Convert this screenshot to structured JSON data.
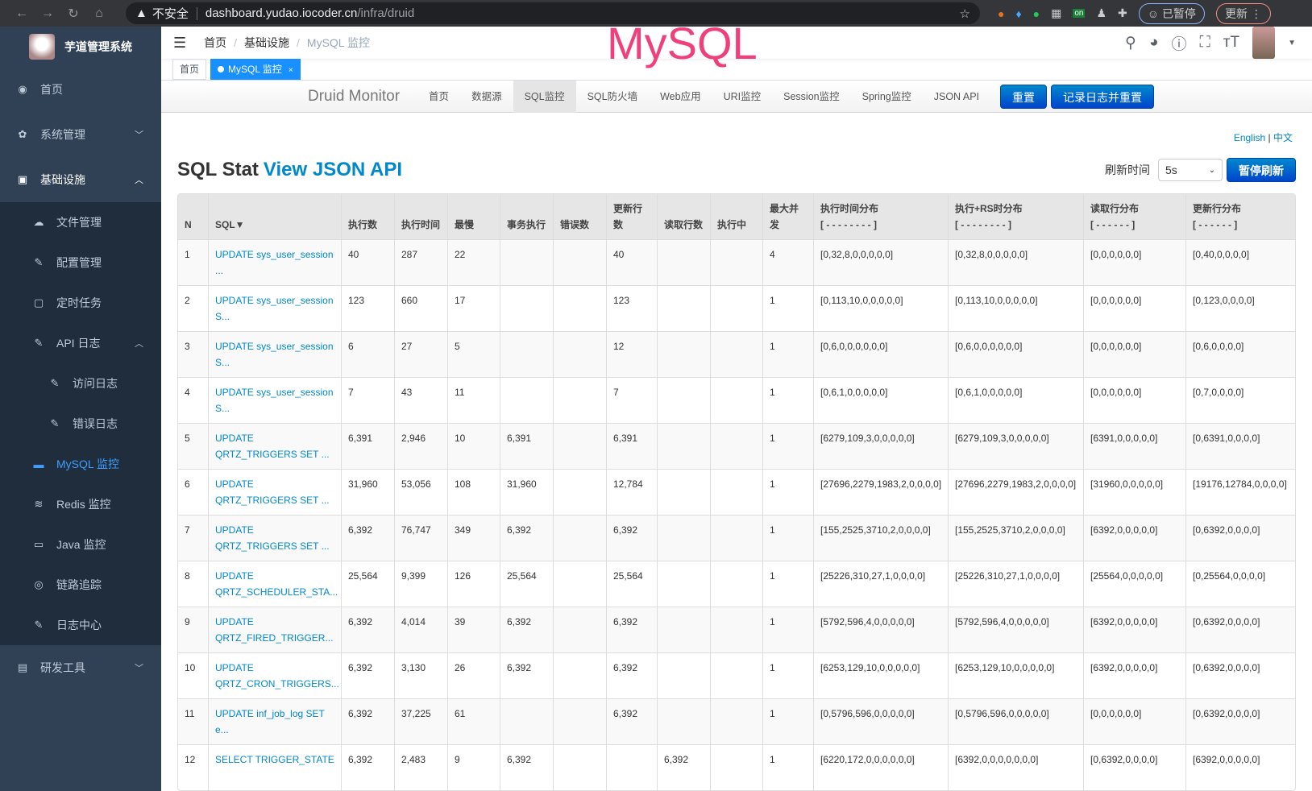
{
  "browser": {
    "insecure": "不安全",
    "url_host": "dashboard.yudao.iocoder.cn",
    "url_path": "/infra/druid",
    "paused": "已暂停",
    "update": "更新",
    "ext_on": "on"
  },
  "sidebar": {
    "title": "芋道管理系统",
    "items": [
      {
        "label": "首页",
        "icon": "dashboard-icon"
      },
      {
        "label": "系统管理",
        "icon": "gear-icon"
      },
      {
        "label": "基础设施",
        "icon": "monitor-icon"
      },
      {
        "label": "文件管理",
        "icon": "upload-icon"
      },
      {
        "label": "配置管理",
        "icon": "edit-icon"
      },
      {
        "label": "定时任务",
        "icon": "job-icon"
      },
      {
        "label": "API 日志",
        "icon": "log-icon"
      },
      {
        "label": "访问日志",
        "icon": "log-icon"
      },
      {
        "label": "错误日志",
        "icon": "log-icon"
      },
      {
        "label": "MySQL 监控",
        "icon": "mysql-icon"
      },
      {
        "label": "Redis 监控",
        "icon": "redis-icon"
      },
      {
        "label": "Java 监控",
        "icon": "server-icon"
      },
      {
        "label": "链路追踪",
        "icon": "eye-icon"
      },
      {
        "label": "日志中心",
        "icon": "log-icon"
      },
      {
        "label": "研发工具",
        "icon": "toolbox-icon"
      }
    ]
  },
  "header": {
    "breadcrumb": [
      "首页",
      "基础设施",
      "MySQL 监控"
    ],
    "overlay_title": "MySQL"
  },
  "tags": {
    "home": "首页",
    "active": "MySQL 监控",
    "close": "×"
  },
  "druid": {
    "brand": "Druid Monitor",
    "nav": [
      "首页",
      "数据源",
      "SQL监控",
      "SQL防火墙",
      "Web应用",
      "URI监控",
      "Session监控",
      "Spring监控",
      "JSON API"
    ],
    "active_nav": "SQL监控",
    "reset": "重置",
    "log_reset": "记录日志并重置",
    "lang_en": "English",
    "lang_sep": "|",
    "lang_zh": "中文",
    "title": "SQL Stat",
    "json_link": "View JSON API",
    "refresh_label": "刷新时间",
    "refresh_value": "5s",
    "pause": "暂停刷新"
  },
  "table": {
    "headers": [
      "N",
      "SQL▼",
      "执行数",
      "执行时间",
      "最慢",
      "事务执行",
      "错误数",
      "更新行数",
      "读取行数",
      "执行中",
      "最大并发",
      "执行时间分布\n[ - - - - - - - - ]",
      "执行+RS时分布\n[ - - - - - - - - ]",
      "读取行分布\n[ - - - - - - ]",
      "更新行分布\n[ - - - - - - ]"
    ],
    "rows": [
      [
        "1",
        "UPDATE sys_user_session ...",
        "40",
        "287",
        "22",
        "",
        "",
        "40",
        "",
        "",
        "4",
        "[0,32,8,0,0,0,0,0]",
        "[0,32,8,0,0,0,0,0]",
        "[0,0,0,0,0,0]",
        "[0,40,0,0,0,0]"
      ],
      [
        "2",
        "UPDATE sys_user_session S...",
        "123",
        "660",
        "17",
        "",
        "",
        "123",
        "",
        "",
        "1",
        "[0,113,10,0,0,0,0,0]",
        "[0,113,10,0,0,0,0,0]",
        "[0,0,0,0,0,0]",
        "[0,123,0,0,0,0]"
      ],
      [
        "3",
        "UPDATE sys_user_session S...",
        "6",
        "27",
        "5",
        "",
        "",
        "12",
        "",
        "",
        "1",
        "[0,6,0,0,0,0,0,0]",
        "[0,6,0,0,0,0,0,0]",
        "[0,0,0,0,0,0]",
        "[0,6,0,0,0,0]"
      ],
      [
        "4",
        "UPDATE sys_user_session S...",
        "7",
        "43",
        "11",
        "",
        "",
        "7",
        "",
        "",
        "1",
        "[0,6,1,0,0,0,0,0]",
        "[0,6,1,0,0,0,0,0]",
        "[0,0,0,0,0,0]",
        "[0,7,0,0,0,0]"
      ],
      [
        "5",
        "UPDATE QRTZ_TRIGGERS SET ...",
        "6,391",
        "2,946",
        "10",
        "6,391",
        "",
        "6,391",
        "",
        "",
        "1",
        "[6279,109,3,0,0,0,0,0]",
        "[6279,109,3,0,0,0,0,0]",
        "[6391,0,0,0,0,0]",
        "[0,6391,0,0,0,0]"
      ],
      [
        "6",
        "UPDATE QRTZ_TRIGGERS SET ...",
        "31,960",
        "53,056",
        "108",
        "31,960",
        "",
        "12,784",
        "",
        "",
        "1",
        "[27696,2279,1983,2,0,0,0,0]",
        "[27696,2279,1983,2,0,0,0,0]",
        "[31960,0,0,0,0,0]",
        "[19176,12784,0,0,0,0]"
      ],
      [
        "7",
        "UPDATE QRTZ_TRIGGERS SET ...",
        "6,392",
        "76,747",
        "349",
        "6,392",
        "",
        "6,392",
        "",
        "",
        "1",
        "[155,2525,3710,2,0,0,0,0]",
        "[155,2525,3710,2,0,0,0,0]",
        "[6392,0,0,0,0,0]",
        "[0,6392,0,0,0,0]"
      ],
      [
        "8",
        "UPDATE QRTZ_SCHEDULER_STA...",
        "25,564",
        "9,399",
        "126",
        "25,564",
        "",
        "25,564",
        "",
        "",
        "1",
        "[25226,310,27,1,0,0,0,0]",
        "[25226,310,27,1,0,0,0,0]",
        "[25564,0,0,0,0,0]",
        "[0,25564,0,0,0,0]"
      ],
      [
        "9",
        "UPDATE QRTZ_FIRED_TRIGGER...",
        "6,392",
        "4,014",
        "39",
        "6,392",
        "",
        "6,392",
        "",
        "",
        "1",
        "[5792,596,4,0,0,0,0,0]",
        "[5792,596,4,0,0,0,0,0]",
        "[6392,0,0,0,0,0]",
        "[0,6392,0,0,0,0]"
      ],
      [
        "10",
        "UPDATE QRTZ_CRON_TRIGGERS...",
        "6,392",
        "3,130",
        "26",
        "6,392",
        "",
        "6,392",
        "",
        "",
        "1",
        "[6253,129,10,0,0,0,0,0]",
        "[6253,129,10,0,0,0,0,0]",
        "[6392,0,0,0,0,0]",
        "[0,6392,0,0,0,0]"
      ],
      [
        "11",
        "UPDATE inf_job_log SET e...",
        "6,392",
        "37,225",
        "61",
        "",
        "",
        "6,392",
        "",
        "",
        "1",
        "[0,5796,596,0,0,0,0,0]",
        "[0,5796,596,0,0,0,0,0]",
        "[0,0,0,0,0,0]",
        "[0,6392,0,0,0,0]"
      ],
      [
        "12",
        "SELECT TRIGGER_STATE",
        "6,392",
        "2,483",
        "9",
        "6,392",
        "",
        "",
        "6,392",
        "",
        "1",
        "[6220,172,0,0,0,0,0,0]",
        "[6392,0,0,0,0,0,0,0]",
        "[0,6392,0,0,0,0]",
        "[6392,0,0,0,0,0]"
      ]
    ]
  }
}
